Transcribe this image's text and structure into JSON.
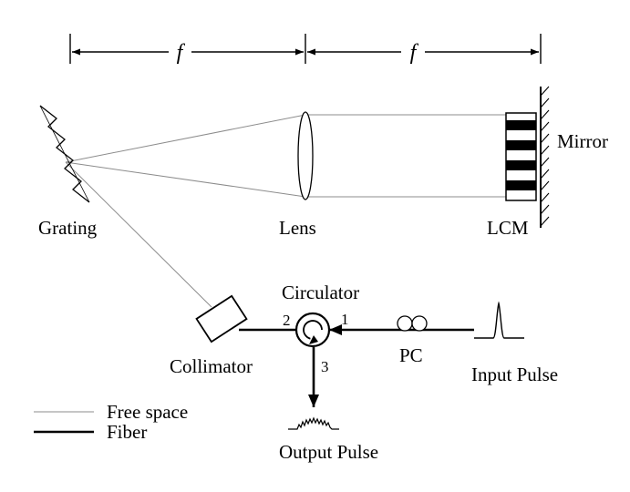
{
  "dimensions": {
    "focal_symbol_1": "f",
    "focal_symbol_2": "f"
  },
  "components": {
    "grating": "Grating",
    "lens": "Lens",
    "lcm": "LCM",
    "mirror": "Mirror",
    "circulator": "Circulator",
    "collimator": "Collimator",
    "pc": "PC",
    "input_pulse": "Input Pulse",
    "output_pulse": "Output Pulse"
  },
  "ports": {
    "port_1": "1",
    "port_2": "2",
    "port_3": "3"
  },
  "legend": {
    "free_space": "Free space",
    "fiber": "Fiber"
  }
}
